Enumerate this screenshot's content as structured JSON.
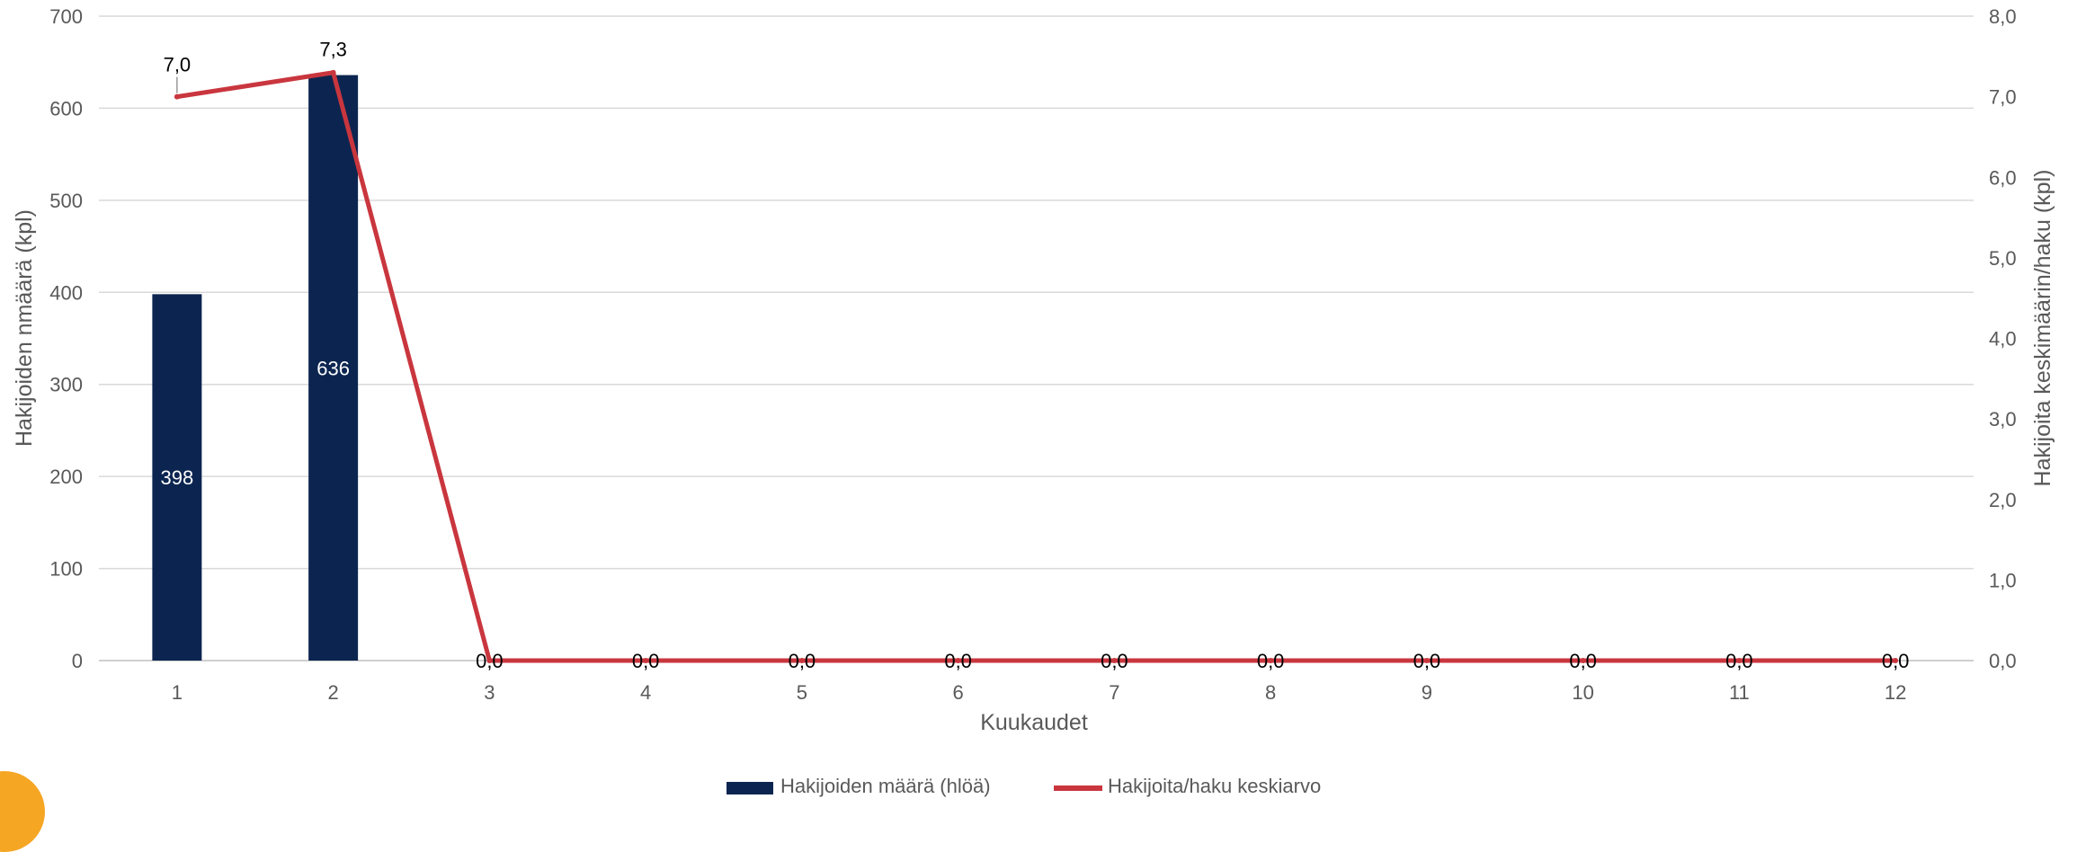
{
  "chart_data": {
    "type": "bar+line",
    "categories": [
      "1",
      "2",
      "3",
      "4",
      "5",
      "6",
      "7",
      "8",
      "9",
      "10",
      "11",
      "12"
    ],
    "series": [
      {
        "name": "Hakijoiden määrä (hlöä)",
        "type": "bar",
        "axis": "left",
        "values": [
          398,
          636,
          0,
          0,
          0,
          0,
          0,
          0,
          0,
          0,
          0,
          0
        ],
        "labels": [
          "398",
          "636",
          "",
          "",
          "",
          "",
          "",
          "",
          "",
          "",
          "",
          ""
        ],
        "color": "#0c2550"
      },
      {
        "name": "Hakijoita/haku keskiarvo",
        "type": "line",
        "axis": "right",
        "values": [
          7.0,
          7.3,
          0.0,
          0.0,
          0.0,
          0.0,
          0.0,
          0.0,
          0.0,
          0.0,
          0.0,
          0.0
        ],
        "labels": [
          "7,0",
          "7,3",
          "0,0",
          "0,0",
          "0,0",
          "0,0",
          "0,0",
          "0,0",
          "0,0",
          "0,0",
          "0,0",
          "0,0"
        ],
        "color": "#c9363e"
      }
    ],
    "xlabel": "Kuukaudet",
    "ylabel": "Hakijoiden nmäärä (kpl)",
    "y2label": "Hakijoita keskimäärin/haku (kpl)",
    "ylim": [
      0,
      700
    ],
    "y2lim": [
      0,
      8
    ],
    "yticks": [
      "0",
      "100",
      "200",
      "300",
      "400",
      "500",
      "600",
      "700"
    ],
    "y2ticks": [
      "0,0",
      "1,0",
      "2,0",
      "3,0",
      "4,0",
      "5,0",
      "6,0",
      "7,0",
      "8,0"
    ],
    "grid": true,
    "legend": "bottom"
  }
}
